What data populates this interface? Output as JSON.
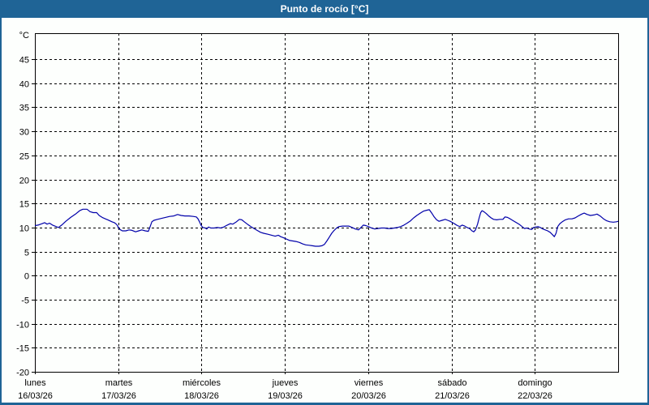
{
  "window": {
    "title": "Punto de rocío [°C]",
    "title_bar_color": "#1f6496",
    "border_color": "#1f6496",
    "panel_background": "#fdfffd"
  },
  "chart_data": {
    "type": "line",
    "title": "Punto de rocío [°C]",
    "grid": true,
    "legend": "none",
    "y_axis": {
      "unit": "°C",
      "range": [
        -20,
        50.4
      ],
      "tick_step": 5,
      "ticks": [
        45,
        40,
        35,
        30,
        25,
        20,
        15,
        10,
        5,
        0,
        -5,
        -10,
        -15,
        -20
      ],
      "gridlines": "dashed"
    },
    "x_axis": {
      "range_hours": [
        0,
        168
      ],
      "gridlines": "dashed",
      "ticks": [
        {
          "hour": 0,
          "day": "lunes",
          "date": "16/03/26"
        },
        {
          "hour": 24,
          "day": "martes",
          "date": "17/03/26"
        },
        {
          "hour": 48,
          "day": "miércoles",
          "date": "18/03/26"
        },
        {
          "hour": 72,
          "day": "jueves",
          "date": "19/03/26"
        },
        {
          "hour": 96,
          "day": "viernes",
          "date": "20/03/26"
        },
        {
          "hour": 120,
          "day": "sábado",
          "date": "21/03/26"
        },
        {
          "hour": 144,
          "day": "domingo",
          "date": "22/03/26"
        }
      ]
    },
    "series": [
      {
        "name": "punto-de-rocio",
        "color": "#0000aa",
        "points_hour_value": [
          [
            0,
            10.4
          ],
          [
            0.9,
            10.5
          ],
          [
            2.1,
            10.8
          ],
          [
            2.8,
            11.0
          ],
          [
            3.5,
            10.7
          ],
          [
            4.2,
            10.9
          ],
          [
            5.1,
            10.5
          ],
          [
            6.1,
            10.2
          ],
          [
            6.8,
            10.0
          ],
          [
            7.7,
            10.5
          ],
          [
            8.9,
            11.3
          ],
          [
            10.3,
            12.1
          ],
          [
            11.7,
            12.8
          ],
          [
            12.9,
            13.5
          ],
          [
            13.8,
            13.8
          ],
          [
            15,
            13.8
          ],
          [
            15.9,
            13.3
          ],
          [
            16.8,
            13.1
          ],
          [
            17.8,
            13.1
          ],
          [
            18.5,
            12.5
          ],
          [
            19.4,
            12.1
          ],
          [
            20.3,
            11.8
          ],
          [
            21,
            11.6
          ],
          [
            22.2,
            11.2
          ],
          [
            22.9,
            11.0
          ],
          [
            23.6,
            10.6
          ],
          [
            24.1,
            10.0
          ],
          [
            24.5,
            9.6
          ],
          [
            25.2,
            9.3
          ],
          [
            26.2,
            9.3
          ],
          [
            27.1,
            9.5
          ],
          [
            28,
            9.4
          ],
          [
            29,
            9.1
          ],
          [
            29.9,
            9.3
          ],
          [
            30.8,
            9.5
          ],
          [
            31.8,
            9.3
          ],
          [
            32.7,
            9.2
          ],
          [
            33.2,
            10.2
          ],
          [
            33.7,
            11.2
          ],
          [
            34.3,
            11.5
          ],
          [
            35.3,
            11.7
          ],
          [
            36.5,
            11.9
          ],
          [
            37.6,
            12.1
          ],
          [
            38.8,
            12.3
          ],
          [
            40,
            12.4
          ],
          [
            41.1,
            12.7
          ],
          [
            42.1,
            12.5
          ],
          [
            43.2,
            12.4
          ],
          [
            44.4,
            12.4
          ],
          [
            45.6,
            12.3
          ],
          [
            46.5,
            12.2
          ],
          [
            47,
            11.8
          ],
          [
            47.4,
            11.2
          ],
          [
            47.9,
            10.4
          ],
          [
            48.4,
            10.0
          ],
          [
            49.1,
            9.9
          ],
          [
            49.5,
            9.7
          ],
          [
            50,
            10.1
          ],
          [
            50.7,
            9.9
          ],
          [
            51.6,
            9.9
          ],
          [
            52.6,
            10.0
          ],
          [
            53.5,
            9.9
          ],
          [
            54.4,
            10.1
          ],
          [
            55.4,
            10.5
          ],
          [
            56.3,
            10.8
          ],
          [
            57,
            10.7
          ],
          [
            57.9,
            11.1
          ],
          [
            58.9,
            11.7
          ],
          [
            59.6,
            11.6
          ],
          [
            60.3,
            11.2
          ],
          [
            61.2,
            10.7
          ],
          [
            62.2,
            10.2
          ],
          [
            63.1,
            9.8
          ],
          [
            64,
            9.4
          ],
          [
            65,
            9.0
          ],
          [
            65.9,
            8.8
          ],
          [
            67.1,
            8.6
          ],
          [
            68.2,
            8.4
          ],
          [
            69.2,
            8.2
          ],
          [
            70.1,
            8.4
          ],
          [
            70.8,
            8.1
          ],
          [
            71.5,
            7.9
          ],
          [
            72.4,
            7.6
          ],
          [
            73.4,
            7.3
          ],
          [
            74.3,
            7.2
          ],
          [
            75.2,
            7.1
          ],
          [
            76.2,
            6.9
          ],
          [
            77.1,
            6.6
          ],
          [
            78,
            6.4
          ],
          [
            79,
            6.3
          ],
          [
            79.9,
            6.2
          ],
          [
            80.8,
            6.1
          ],
          [
            81.8,
            6.1
          ],
          [
            82.7,
            6.2
          ],
          [
            83.4,
            6.5
          ],
          [
            84.1,
            7.2
          ],
          [
            84.8,
            8.0
          ],
          [
            85.5,
            8.8
          ],
          [
            86.2,
            9.4
          ],
          [
            86.9,
            9.9
          ],
          [
            87.6,
            10.2
          ],
          [
            88.6,
            10.3
          ],
          [
            89.5,
            10.3
          ],
          [
            90.4,
            10.3
          ],
          [
            91.4,
            10.0
          ],
          [
            92.3,
            9.7
          ],
          [
            93.2,
            9.5
          ],
          [
            93.9,
            10.0
          ],
          [
            94.6,
            10.5
          ],
          [
            95.3,
            10.4
          ],
          [
            96,
            10.2
          ],
          [
            97,
            9.9
          ],
          [
            97.9,
            9.7
          ],
          [
            98.8,
            9.8
          ],
          [
            99.8,
            9.9
          ],
          [
            100.7,
            9.9
          ],
          [
            101.6,
            9.8
          ],
          [
            102.6,
            9.8
          ],
          [
            103.5,
            9.9
          ],
          [
            104.4,
            10.0
          ],
          [
            105.4,
            10.2
          ],
          [
            106.3,
            10.5
          ],
          [
            107.2,
            10.9
          ],
          [
            108.2,
            11.4
          ],
          [
            109.1,
            12.0
          ],
          [
            110,
            12.5
          ],
          [
            111,
            13.0
          ],
          [
            111.9,
            13.4
          ],
          [
            112.9,
            13.6
          ],
          [
            113.6,
            13.7
          ],
          [
            114.3,
            13.0
          ],
          [
            115,
            12.2
          ],
          [
            115.7,
            11.6
          ],
          [
            116.4,
            11.3
          ],
          [
            117.3,
            11.5
          ],
          [
            118.2,
            11.7
          ],
          [
            118.9,
            11.5
          ],
          [
            119.6,
            11.3
          ],
          [
            120.3,
            11.0
          ],
          [
            121,
            10.7
          ],
          [
            121.7,
            10.4
          ],
          [
            122.4,
            10.2
          ],
          [
            123.1,
            10.5
          ],
          [
            123.8,
            10.3
          ],
          [
            124.5,
            10.0
          ],
          [
            125.2,
            9.8
          ],
          [
            125.9,
            9.3
          ],
          [
            126.4,
            9.1
          ],
          [
            126.9,
            9.5
          ],
          [
            127.5,
            10.7
          ],
          [
            128,
            12.1
          ],
          [
            128.4,
            13.1
          ],
          [
            128.8,
            13.5
          ],
          [
            129.3,
            13.3
          ],
          [
            130,
            12.9
          ],
          [
            130.7,
            12.4
          ],
          [
            131.4,
            12.0
          ],
          [
            132.1,
            11.7
          ],
          [
            133,
            11.6
          ],
          [
            133.9,
            11.7
          ],
          [
            134.8,
            11.7
          ],
          [
            135.4,
            12.2
          ],
          [
            136.1,
            12.1
          ],
          [
            136.9,
            11.8
          ],
          [
            137.8,
            11.4
          ],
          [
            138.7,
            11.0
          ],
          [
            139.6,
            10.6
          ],
          [
            140.3,
            10.2
          ],
          [
            141,
            9.8
          ],
          [
            141.7,
            9.9
          ],
          [
            142.4,
            9.7
          ],
          [
            143.1,
            9.6
          ],
          [
            143.6,
            10.0
          ],
          [
            144.2,
            10.1
          ],
          [
            144.9,
            10.2
          ],
          [
            145.6,
            10.0
          ],
          [
            146.3,
            9.7
          ],
          [
            147,
            9.5
          ],
          [
            147.7,
            9.3
          ],
          [
            148.4,
            9.0
          ],
          [
            149.1,
            8.5
          ],
          [
            149.6,
            8.1
          ],
          [
            150.1,
            8.8
          ],
          [
            150.6,
            10.2
          ],
          [
            151.2,
            10.8
          ],
          [
            151.9,
            11.2
          ],
          [
            152.8,
            11.6
          ],
          [
            153.7,
            11.8
          ],
          [
            154.7,
            11.8
          ],
          [
            155.6,
            12.0
          ],
          [
            156.5,
            12.4
          ],
          [
            157.5,
            12.8
          ],
          [
            158.2,
            13.0
          ],
          [
            159.1,
            12.7
          ],
          [
            160,
            12.5
          ],
          [
            161,
            12.6
          ],
          [
            161.9,
            12.8
          ],
          [
            162.8,
            12.4
          ],
          [
            163.8,
            11.8
          ],
          [
            164.7,
            11.4
          ],
          [
            165.6,
            11.2
          ],
          [
            166.6,
            11.1
          ],
          [
            167.5,
            11.2
          ],
          [
            168,
            11.3
          ]
        ]
      }
    ]
  }
}
